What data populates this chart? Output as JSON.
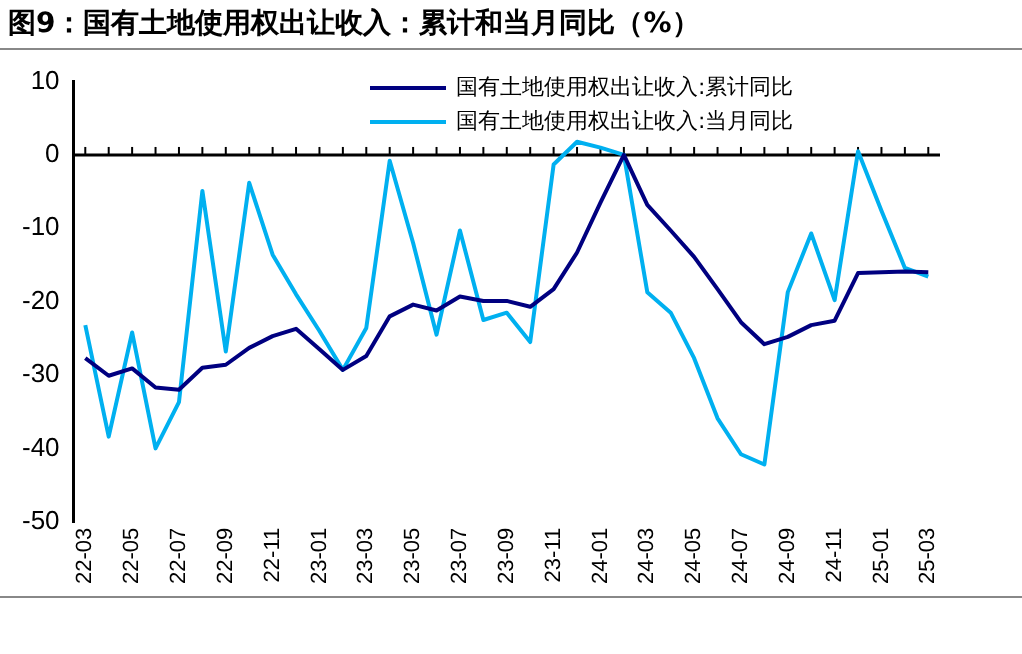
{
  "chart_data": {
    "type": "line",
    "title": "图9：国有土地使用权出让收入：累计和当月同比（%）",
    "categories": [
      "22-03",
      null,
      "22-05",
      null,
      "22-07",
      null,
      "22-09",
      null,
      "22-11",
      null,
      "23-01",
      null,
      "23-03",
      null,
      "23-05",
      null,
      "23-07",
      null,
      "23-09",
      null,
      "23-11",
      null,
      "24-01",
      null,
      "24-03",
      null,
      "24-05",
      null,
      "24-07",
      null,
      "24-09",
      null,
      "24-11",
      null,
      "25-01",
      null,
      "25-03"
    ],
    "series": [
      {
        "name": "国有土地使用权出让收入:累计同比",
        "color": "#000080",
        "values": [
          -27.7,
          -30.1,
          -29.1,
          -31.7,
          -32,
          -29,
          -28.6,
          -26.3,
          -24.7,
          -23.7,
          -26.5,
          -29.3,
          -27.4,
          -22,
          -20.4,
          -21.2,
          -19.3,
          -19.9,
          -19.9,
          -20.7,
          -18.3,
          -13.3,
          -6.5,
          0,
          -6.8,
          -10.3,
          -13.9,
          -18.3,
          -22.8,
          -25.8,
          -24.8,
          -23.2,
          -22.6,
          -16.1,
          -16,
          -15.9,
          -16
        ]
      },
      {
        "name": "国有土地使用权出让收入:当月同比",
        "color": "#00b0f0",
        "values": [
          -23.2,
          -38.4,
          -24.2,
          -40,
          -33.7,
          -4.9,
          -26.8,
          -3.8,
          -13.6,
          -19,
          -24,
          -29.3,
          -23.6,
          -0.8,
          -12,
          -24.5,
          -10.3,
          -22.5,
          -21.5,
          -25.5,
          -1.3,
          1.8,
          1,
          0,
          -18.7,
          -21.5,
          -27.7,
          -35.9,
          -40.8,
          -42.2,
          -18.7,
          -10.7,
          -19.8,
          0.5,
          -7.6,
          -15.4,
          -16.6
        ]
      }
    ],
    "ylim": [
      -50,
      10
    ],
    "yticks": [
      -50,
      -40,
      -30,
      -20,
      -10,
      0,
      10
    ],
    "ref_lines": [
      {
        "axis": "y",
        "value": 0,
        "color": "#000000"
      }
    ],
    "legend": "top right",
    "marker": "none",
    "line_style": "solid"
  }
}
